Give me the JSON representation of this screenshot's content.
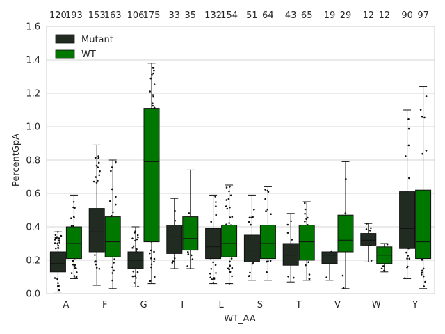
{
  "chart_data": {
    "type": "box",
    "xlabel": "WT_AA",
    "ylabel": "PercentGpA",
    "ylim": [
      0,
      1.6
    ],
    "yticks": [
      "0.0",
      "0.2",
      "0.4",
      "0.6",
      "0.8",
      "1.0",
      "1.2",
      "1.4",
      "1.6"
    ],
    "grid": true,
    "legend_position": "top-left",
    "colors": {
      "Mutant": "#222b22",
      "WT": "#007800"
    },
    "series": [
      {
        "name": "Mutant"
      },
      {
        "name": "WT"
      }
    ],
    "categories": [
      {
        "label": "A",
        "count_labels": [
          "120",
          "193"
        ],
        "Mutant": {
          "whisker_low": 0.01,
          "q1": 0.13,
          "median": 0.18,
          "q3": 0.25,
          "whisker_high": 0.37
        },
        "WT": {
          "whisker_low": 0.09,
          "q1": 0.21,
          "median": 0.3,
          "q3": 0.4,
          "whisker_high": 0.59
        }
      },
      {
        "label": "F",
        "count_labels": [
          "153",
          "163"
        ],
        "Mutant": {
          "whisker_low": 0.05,
          "q1": 0.25,
          "median": 0.37,
          "q3": 0.51,
          "whisker_high": 0.89
        },
        "WT": {
          "whisker_low": 0.03,
          "q1": 0.22,
          "median": 0.31,
          "q3": 0.46,
          "whisker_high": 0.8
        }
      },
      {
        "label": "G",
        "count_labels": [
          "106",
          "175"
        ],
        "Mutant": {
          "whisker_low": 0.04,
          "q1": 0.15,
          "median": 0.2,
          "q3": 0.25,
          "whisker_high": 0.4
        },
        "WT": {
          "whisker_low": 0.06,
          "q1": 0.31,
          "median": 0.79,
          "q3": 1.11,
          "whisker_high": 1.38
        }
      },
      {
        "label": "I",
        "count_labels": [
          "33",
          "35"
        ],
        "Mutant": {
          "whisker_low": 0.15,
          "q1": 0.24,
          "median": 0.34,
          "q3": 0.41,
          "whisker_high": 0.57
        },
        "WT": {
          "whisker_low": 0.15,
          "q1": 0.26,
          "median": 0.33,
          "q3": 0.46,
          "whisker_high": 0.74
        }
      },
      {
        "label": "L",
        "count_labels": [
          "132",
          "154"
        ],
        "Mutant": {
          "whisker_low": 0.06,
          "q1": 0.21,
          "median": 0.28,
          "q3": 0.39,
          "whisker_high": 0.59
        },
        "WT": {
          "whisker_low": 0.06,
          "q1": 0.22,
          "median": 0.3,
          "q3": 0.41,
          "whisker_high": 0.65
        }
      },
      {
        "label": "S",
        "count_labels": [
          "51",
          "64"
        ],
        "Mutant": {
          "whisker_low": 0.08,
          "q1": 0.19,
          "median": 0.26,
          "q3": 0.35,
          "whisker_high": 0.59
        },
        "WT": {
          "whisker_low": 0.08,
          "q1": 0.21,
          "median": 0.3,
          "q3": 0.41,
          "whisker_high": 0.64
        }
      },
      {
        "label": "T",
        "count_labels": [
          "43",
          "65"
        ],
        "Mutant": {
          "whisker_low": 0.07,
          "q1": 0.17,
          "median": 0.23,
          "q3": 0.3,
          "whisker_high": 0.48
        },
        "WT": {
          "whisker_low": 0.08,
          "q1": 0.2,
          "median": 0.31,
          "q3": 0.41,
          "whisker_high": 0.55
        }
      },
      {
        "label": "V",
        "count_labels": [
          "19",
          "29"
        ],
        "Mutant": {
          "whisker_low": 0.08,
          "q1": 0.18,
          "median": 0.23,
          "q3": 0.25,
          "whisker_high": 0.25
        },
        "WT": {
          "whisker_low": 0.03,
          "q1": 0.25,
          "median": 0.32,
          "q3": 0.47,
          "whisker_high": 0.79
        }
      },
      {
        "label": "W",
        "count_labels": [
          "12",
          "12"
        ],
        "Mutant": {
          "whisker_low": 0.19,
          "q1": 0.29,
          "median": 0.32,
          "q3": 0.36,
          "whisker_high": 0.42
        },
        "WT": {
          "whisker_low": 0.13,
          "q1": 0.18,
          "median": 0.23,
          "q3": 0.28,
          "whisker_high": 0.3
        }
      },
      {
        "label": "Y",
        "count_labels": [
          "90",
          "97"
        ],
        "Mutant": {
          "whisker_low": 0.09,
          "q1": 0.27,
          "median": 0.39,
          "q3": 0.61,
          "whisker_high": 1.1
        },
        "WT": {
          "whisker_low": 0.03,
          "q1": 0.21,
          "median": 0.31,
          "q3": 0.62,
          "whisker_high": 1.24
        }
      }
    ]
  }
}
